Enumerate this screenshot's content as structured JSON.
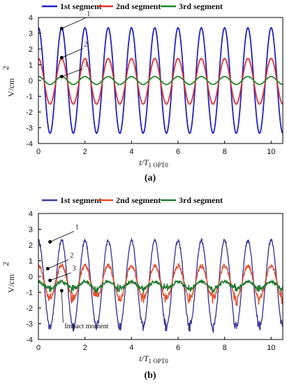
{
  "chart_data": [
    {
      "type": "line",
      "panel_label": "(a)",
      "xlabel_t": "t/T",
      "xlabel_sub": "1 OPT0",
      "ylabel": "V/cm",
      "ylabel_sup": "2",
      "xlim": [
        0,
        10.5
      ],
      "ylim": [
        -4,
        4
      ],
      "xticks": [
        0,
        2,
        4,
        6,
        8,
        10
      ],
      "yticks": [
        -4,
        -3,
        -2,
        -1,
        0,
        1,
        2,
        3,
        4
      ],
      "legend_position": "top",
      "series": [
        {
          "name": "1st segment",
          "color": "#1f22c8",
          "amplitude": 3.35,
          "offset": 0.0,
          "period": 1.0,
          "phase": 0.0,
          "noise": 0.0
        },
        {
          "name": "2nd segment",
          "color": "#e03030",
          "amplitude": 1.45,
          "offset": -0.05,
          "period": 1.0,
          "phase": 0.0,
          "noise": 0.0
        },
        {
          "name": "3rd segment",
          "color": "#1a8a2a",
          "amplitude": 0.25,
          "offset": 0.0,
          "period": 1.0,
          "phase": 0.0,
          "noise": 0.0
        }
      ],
      "annotations": [
        {
          "text": "1",
          "x": 1.0,
          "y": 3.3
        },
        {
          "text": "2",
          "x": 1.0,
          "y": 1.45
        },
        {
          "text": "3",
          "x": 1.0,
          "y": 0.25
        }
      ]
    },
    {
      "type": "line",
      "panel_label": "(b)",
      "xlabel_t": "t/T",
      "xlabel_sub": "1 OPT0",
      "ylabel": "V/cm",
      "ylabel_sup": "2",
      "xlim": [
        0,
        10.5
      ],
      "ylim": [
        -4,
        4
      ],
      "xticks": [
        0,
        2,
        4,
        6,
        8,
        10
      ],
      "yticks": [
        -4,
        -3,
        -2,
        -1,
        0,
        1,
        2,
        3,
        4
      ],
      "legend_position": "top",
      "series": [
        {
          "name": "1st segment",
          "color": "#3a3a9e",
          "amplitude": 2.75,
          "offset": -0.45,
          "period": 1.0,
          "phase": 0.0,
          "noise": 0.12
        },
        {
          "name": "2nd segment",
          "color": "#e8502a",
          "amplitude": 1.05,
          "offset": -0.35,
          "period": 1.0,
          "phase": 0.0,
          "noise": 0.15
        },
        {
          "name": "3rd segment",
          "color": "#1e7a30",
          "amplitude": 0.22,
          "offset": -0.55,
          "period": 1.0,
          "phase": 0.0,
          "noise": 0.1
        }
      ],
      "annotations": [
        {
          "text": "1",
          "x": 0.5,
          "y": 2.2
        },
        {
          "text": "2",
          "x": 0.4,
          "y": 0.5
        },
        {
          "text": "3",
          "x": 0.5,
          "y": -0.25
        },
        {
          "text": "Impact moment",
          "x": 1.0,
          "y": -0.9
        }
      ]
    }
  ]
}
